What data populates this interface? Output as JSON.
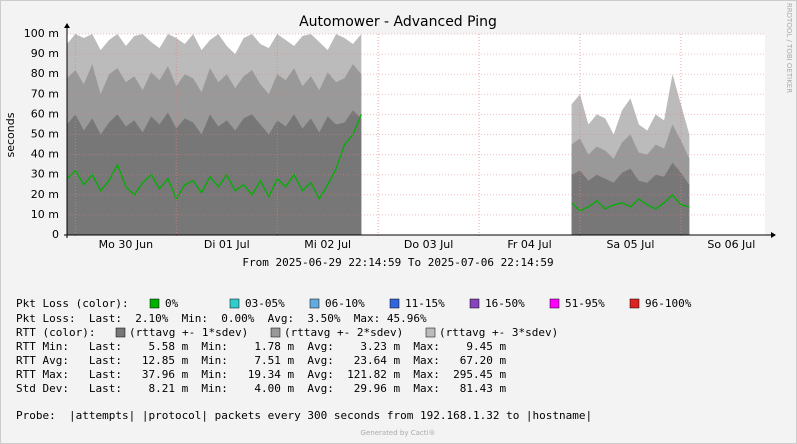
{
  "chart_data": {
    "type": "smoke",
    "title": "Automower - Advanced Ping",
    "y_label": "seconds",
    "side_label": "RRDTOOL / TOBI OETIKER",
    "period": "From 2025-06-29 22:14:59 To 2025-07-06 22:14:59",
    "categories": [
      null,
      null,
      null,
      null,
      null,
      null,
      null,
      "Mo 30 Jun",
      null,
      null,
      null,
      null,
      null,
      null,
      null,
      null,
      null,
      null,
      null,
      "Di 01 Jul",
      null,
      null,
      null,
      null,
      null,
      null,
      null,
      null,
      null,
      null,
      null,
      "Mi 02 Jul",
      null,
      null,
      null,
      null,
      null,
      null,
      null,
      null,
      null,
      null,
      null,
      "Do 03 Jul",
      null,
      null,
      null,
      null,
      null,
      null,
      null,
      null,
      null,
      null,
      null,
      "Fr 04 Jul",
      null,
      null,
      null,
      null,
      null,
      null,
      null,
      null,
      null,
      null,
      null,
      "Sa 05 Jul",
      null,
      null,
      null,
      null,
      null,
      null,
      null,
      null,
      null,
      null,
      null,
      "So 06 Jul",
      null,
      null,
      null,
      null
    ],
    "ylim": [
      0,
      0.1
    ],
    "yticks": [
      0,
      {
        "value": 0.01,
        "label": "10 m"
      },
      {
        "value": 0.02,
        "label": "20 m"
      },
      {
        "value": 0.03,
        "label": "30 m"
      },
      {
        "value": 0.04,
        "label": "40 m"
      },
      {
        "value": 0.05,
        "label": "50 m"
      },
      {
        "value": 0.06,
        "label": "60 m"
      },
      {
        "value": 0.07,
        "label": "70 m"
      },
      {
        "value": 0.08,
        "label": "80 m"
      },
      {
        "value": 0.09,
        "label": "90 m"
      },
      {
        "value": 0.1,
        "label": "100 m"
      }
    ],
    "grid": true,
    "series": [
      {
        "name": "(rttavg +- 3*sdev)",
        "color": "#bbbbbb",
        "kind": "area",
        "values": [
          0.095,
          0.1,
          0.098,
          0.1,
          0.092,
          0.097,
          0.1,
          0.094,
          0.099,
          0.1,
          0.096,
          0.093,
          0.1,
          0.098,
          0.095,
          0.1,
          0.092,
          0.097,
          0.1,
          0.094,
          0.09,
          0.098,
          0.1,
          0.095,
          0.093,
          0.1,
          0.097,
          0.094,
          0.099,
          0.1,
          0.096,
          0.092,
          0.1,
          0.098,
          0.095,
          0.1,
          null,
          null,
          null,
          null,
          null,
          null,
          null,
          null,
          null,
          null,
          null,
          null,
          null,
          null,
          null,
          null,
          null,
          null,
          null,
          null,
          null,
          null,
          null,
          null,
          0.065,
          0.07,
          0.055,
          0.06,
          0.058,
          0.05,
          0.062,
          0.068,
          0.055,
          0.052,
          0.06,
          0.057,
          0.08,
          0.065,
          0.05,
          null,
          null,
          null,
          null,
          null,
          null,
          null,
          null,
          null
        ]
      },
      {
        "name": "(rttavg +- 2*sdev)",
        "color": "#999999",
        "kind": "area",
        "values": [
          0.078,
          0.082,
          0.075,
          0.085,
          0.07,
          0.08,
          0.083,
          0.076,
          0.079,
          0.072,
          0.081,
          0.077,
          0.084,
          0.074,
          0.08,
          0.078,
          0.071,
          0.083,
          0.076,
          0.08,
          0.073,
          0.079,
          0.082,
          0.075,
          0.07,
          0.08,
          0.077,
          0.083,
          0.074,
          0.079,
          0.072,
          0.081,
          0.076,
          0.078,
          0.085,
          0.08,
          null,
          null,
          null,
          null,
          null,
          null,
          null,
          null,
          null,
          null,
          null,
          null,
          null,
          null,
          null,
          null,
          null,
          null,
          null,
          null,
          null,
          null,
          null,
          null,
          0.045,
          0.048,
          0.04,
          0.044,
          0.042,
          0.038,
          0.046,
          0.05,
          0.041,
          0.04,
          0.045,
          0.043,
          0.055,
          0.047,
          0.038,
          null,
          null,
          null,
          null,
          null,
          null,
          null,
          null,
          null
        ]
      },
      {
        "name": "(rttavg +- 1*sdev)",
        "color": "#777777",
        "kind": "area",
        "values": [
          0.055,
          0.06,
          0.052,
          0.058,
          0.05,
          0.056,
          0.06,
          0.054,
          0.057,
          0.051,
          0.059,
          0.055,
          0.061,
          0.053,
          0.058,
          0.056,
          0.05,
          0.06,
          0.054,
          0.057,
          0.052,
          0.058,
          0.06,
          0.055,
          0.05,
          0.057,
          0.054,
          0.06,
          0.053,
          0.058,
          0.051,
          0.059,
          0.055,
          0.056,
          0.062,
          0.058,
          null,
          null,
          null,
          null,
          null,
          null,
          null,
          null,
          null,
          null,
          null,
          null,
          null,
          null,
          null,
          null,
          null,
          null,
          null,
          null,
          null,
          null,
          null,
          null,
          0.03,
          0.032,
          0.027,
          0.03,
          0.028,
          0.026,
          0.031,
          0.033,
          0.027,
          0.026,
          0.03,
          0.029,
          0.036,
          0.031,
          0.025,
          null,
          null,
          null,
          null,
          null,
          null,
          null,
          null,
          null
        ]
      },
      {
        "color": "#00b000",
        "kind": "line",
        "values": [
          0.028,
          0.032,
          0.025,
          0.03,
          0.022,
          0.027,
          0.035,
          0.024,
          0.02,
          0.026,
          0.03,
          0.023,
          0.028,
          0.018,
          0.025,
          0.027,
          0.021,
          0.029,
          0.024,
          0.03,
          0.022,
          0.025,
          0.02,
          0.027,
          0.019,
          0.028,
          0.024,
          0.03,
          0.022,
          0.026,
          0.018,
          0.025,
          0.033,
          0.045,
          0.05,
          0.06,
          null,
          null,
          null,
          null,
          null,
          null,
          null,
          null,
          null,
          null,
          null,
          null,
          null,
          null,
          null,
          null,
          null,
          null,
          null,
          null,
          null,
          null,
          null,
          null,
          0.016,
          0.012,
          0.014,
          0.017,
          0.013,
          0.015,
          0.016,
          0.014,
          0.018,
          0.015,
          0.013,
          0.016,
          0.02,
          0.015,
          0.014,
          null,
          null,
          null,
          null,
          null,
          null,
          null,
          null,
          null
        ]
      }
    ]
  },
  "footer": {
    "loss_title": "Pkt Loss (color):",
    "loss_colors": [
      {
        "label": "0%",
        "color": "#00b000"
      },
      {
        "label": "03-05%",
        "color": "#33cccc"
      },
      {
        "label": "06-10%",
        "color": "#66aadd"
      },
      {
        "label": "11-15%",
        "color": "#3366dd"
      },
      {
        "label": "16-50%",
        "color": "#8844bb"
      },
      {
        "label": "51-95%",
        "color": "#ff00ff"
      },
      {
        "label": "96-100%",
        "color": "#dd2222"
      }
    ],
    "loss_stats": "Pkt Loss:  Last:  2.10%  Min:  0.00%  Avg:  3.50%  Max: 45.96%",
    "rtt_title": "RTT (color):",
    "rtt_stats": [
      "RTT Min:   Last:    5.58 m  Min:    1.78 m  Avg:    3.23 m  Max:    9.45 m",
      "RTT Avg:   Last:   12.85 m  Min:    7.51 m  Avg:   23.64 m  Max:   67.20 m",
      "RTT Max:   Last:   37.96 m  Min:   19.34 m  Avg:  121.82 m  Max:  295.45 m",
      "Std Dev:   Last:    8.21 m  Min:    4.00 m  Avg:   29.96 m  Max:   81.43 m"
    ],
    "probe": "Probe:  |attempts| |protocol| packets every 300 seconds from 192.168.1.32 to |hostname|",
    "generator": "Generated by Cacti®"
  }
}
